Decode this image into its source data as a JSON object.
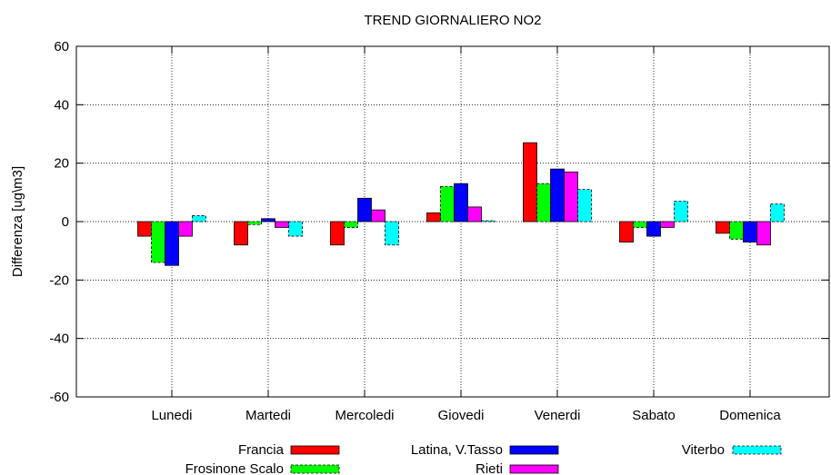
{
  "chart_data": {
    "type": "bar",
    "title": "TREND GIORNALIERO NO2",
    "xlabel": "",
    "ylabel": "Differenza [ug\\m3]",
    "ylim": [
      -60,
      60
    ],
    "yticks": [
      -60,
      -40,
      -20,
      0,
      20,
      40,
      60
    ],
    "grid": true,
    "legend_position": "bottom",
    "categories": [
      "Lunedi",
      "Martedi",
      "Mercoledi",
      "Giovedi",
      "Venerdi",
      "Sabato",
      "Domenica"
    ],
    "series": [
      {
        "name": "Francia",
        "color": "#ff0000",
        "dashed": false,
        "values": [
          -5,
          -8,
          -8,
          3,
          27,
          -7,
          -4
        ]
      },
      {
        "name": "Frosinone Scalo",
        "color": "#00ff00",
        "dashed": true,
        "values": [
          -14,
          -1,
          -2,
          12,
          13,
          -2,
          -6
        ]
      },
      {
        "name": "Latina, V.Tasso",
        "color": "#0000ff",
        "dashed": false,
        "values": [
          -15,
          1,
          8,
          13,
          18,
          -5,
          -7
        ]
      },
      {
        "name": "Rieti",
        "color": "#ff00ff",
        "dashed": false,
        "values": [
          -5,
          -2,
          4,
          5,
          17,
          -2,
          -8
        ]
      },
      {
        "name": "Viterbo",
        "color": "#00ffff",
        "dashed": true,
        "values": [
          2,
          -5,
          -8,
          0.3,
          11,
          7,
          6
        ]
      }
    ]
  }
}
